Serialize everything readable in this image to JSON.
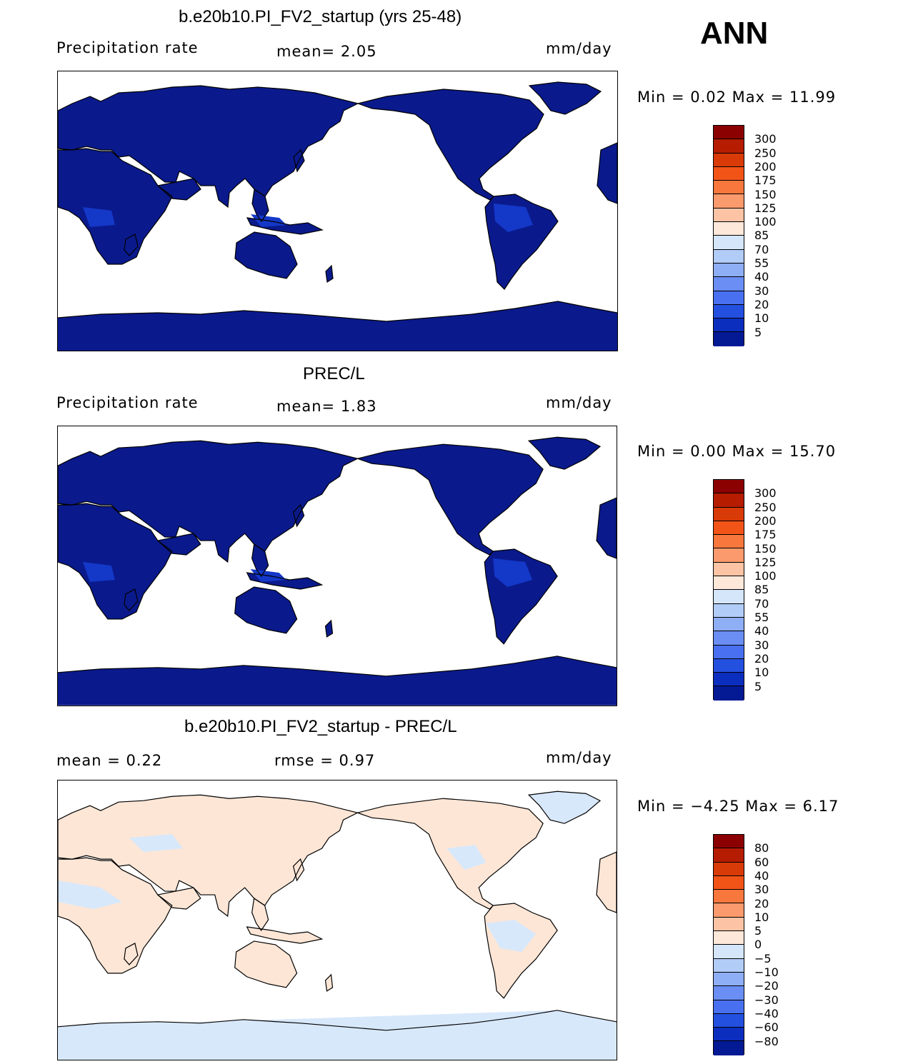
{
  "corner_label": "ANN",
  "panels": [
    {
      "title": "b.e20b10.PI_FV2_startup (yrs 25-48)",
      "left_label": "Precipitation rate",
      "center_label": "mean=    2.05",
      "units": "mm/day",
      "minmax": "Min =    0.02  Max =   11.99",
      "type": "model"
    },
    {
      "title": "PREC/L",
      "left_label": "Precipitation rate",
      "center_label": "mean=    1.83",
      "units": "mm/day",
      "minmax": "Min =    0.00  Max =   15.70",
      "type": "obs"
    },
    {
      "title": "b.e20b10.PI_FV2_startup - PREC/L",
      "left_label": "mean =    0.22",
      "center_label": "rmse =    0.97",
      "units": "mm/day",
      "minmax": "Min =  −4.25  Max =    6.17",
      "type": "diff"
    }
  ],
  "colorbar_abs": {
    "labels": [
      "300",
      "250",
      "200",
      "175",
      "150",
      "125",
      "100",
      "85",
      "70",
      "55",
      "40",
      "30",
      "20",
      "10",
      "5"
    ],
    "colors": [
      "#8b0000",
      "#b51c00",
      "#d83a08",
      "#f25418",
      "#f8773c",
      "#fb9a6c",
      "#fcc4a4",
      "#fee8da",
      "#d5e6fa",
      "#b2ccf8",
      "#8eaef6",
      "#6a8ef4",
      "#4870f0",
      "#2450e0",
      "#0c2ebe",
      "#041a94"
    ]
  },
  "colorbar_diff": {
    "labels": [
      "80",
      "60",
      "40",
      "30",
      "20",
      "10",
      "5",
      "0",
      "−5",
      "−10",
      "−20",
      "−30",
      "−40",
      "−60",
      "−80"
    ],
    "colors": [
      "#8b0000",
      "#b51c00",
      "#d83a08",
      "#f25418",
      "#f8773c",
      "#fb9a6c",
      "#fcc4a4",
      "#fee8da",
      "#d5e6fa",
      "#b2ccf8",
      "#8eaef6",
      "#6a8ef4",
      "#4870f0",
      "#2450e0",
      "#0c2ebe",
      "#041a94"
    ]
  },
  "colors": {
    "land_abs": "#0a1a8c",
    "land_abs_wet": "#1438c8",
    "diff_positive": "#fde6d6",
    "diff_negative": "#d8e8fb",
    "ocean": "#ffffff"
  }
}
